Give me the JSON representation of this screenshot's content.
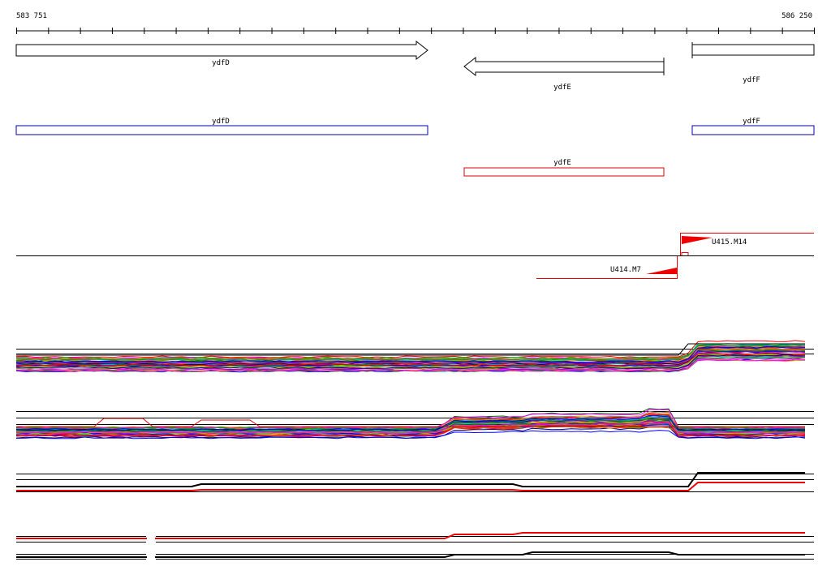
{
  "ruler": {
    "start": "583 751",
    "end": "586 250"
  },
  "gene_arrows": [
    {
      "label": "ydfD"
    },
    {
      "label": "ydfE"
    },
    {
      "label": "ydfF"
    }
  ],
  "gene_boxes": [
    {
      "label": "ydfD"
    },
    {
      "label": "ydfE"
    },
    {
      "label": "ydfF"
    }
  ],
  "features": [
    {
      "label": "U415.M14"
    },
    {
      "label": "U414.M7"
    }
  ]
}
